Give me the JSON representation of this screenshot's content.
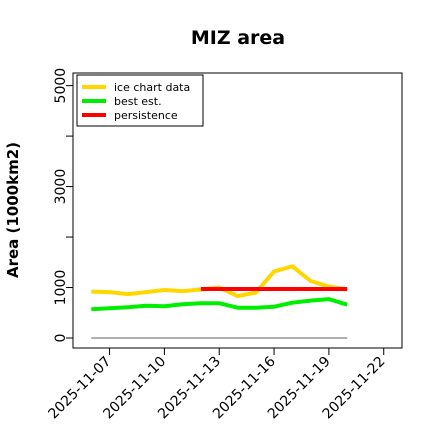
{
  "chart_data": {
    "type": "line",
    "title": "MIZ area",
    "ylabel": "Area (1000km2)",
    "xlabel": "",
    "xlim": [
      "2025-11-05",
      "2025-11-23"
    ],
    "ylim": [
      0,
      5250
    ],
    "x_ticks": [
      "2025-11-07",
      "2025-11-10",
      "2025-11-13",
      "2025-11-16",
      "2025-11-19",
      "2025-11-22"
    ],
    "y_ticks": [
      0,
      1000,
      3000,
      5000
    ],
    "y_minor_ticks": [
      2000,
      4000
    ],
    "legend_position": "top-left",
    "series": [
      {
        "name": "ice chart data",
        "color": "#FFD700",
        "x": [
          "2025-11-06",
          "2025-11-07",
          "2025-11-08",
          "2025-11-09",
          "2025-11-10",
          "2025-11-11",
          "2025-11-12",
          "2025-11-13",
          "2025-11-14",
          "2025-11-15",
          "2025-11-16",
          "2025-11-17",
          "2025-11-18",
          "2025-11-19",
          "2025-11-20"
        ],
        "values": [
          920,
          910,
          870,
          910,
          950,
          930,
          960,
          1000,
          830,
          900,
          1320,
          1420,
          1130,
          1020,
          960
        ]
      },
      {
        "name": "best est.",
        "color": "#00EE00",
        "x": [
          "2025-11-06",
          "2025-11-07",
          "2025-11-08",
          "2025-11-09",
          "2025-11-10",
          "2025-11-11",
          "2025-11-12",
          "2025-11-13",
          "2025-11-14",
          "2025-11-15",
          "2025-11-16",
          "2025-11-17",
          "2025-11-18",
          "2025-11-19",
          "2025-11-20"
        ],
        "values": [
          570,
          590,
          610,
          640,
          630,
          670,
          690,
          690,
          600,
          600,
          620,
          700,
          740,
          770,
          660
        ]
      },
      {
        "name": "persistence",
        "color": "#FF0000",
        "x": [
          "2025-11-12",
          "2025-11-20"
        ],
        "values": [
          970,
          970
        ]
      },
      {
        "color": "#808080",
        "x": [
          "2025-11-06",
          "2025-11-20"
        ],
        "values": [
          0,
          0
        ]
      }
    ]
  }
}
